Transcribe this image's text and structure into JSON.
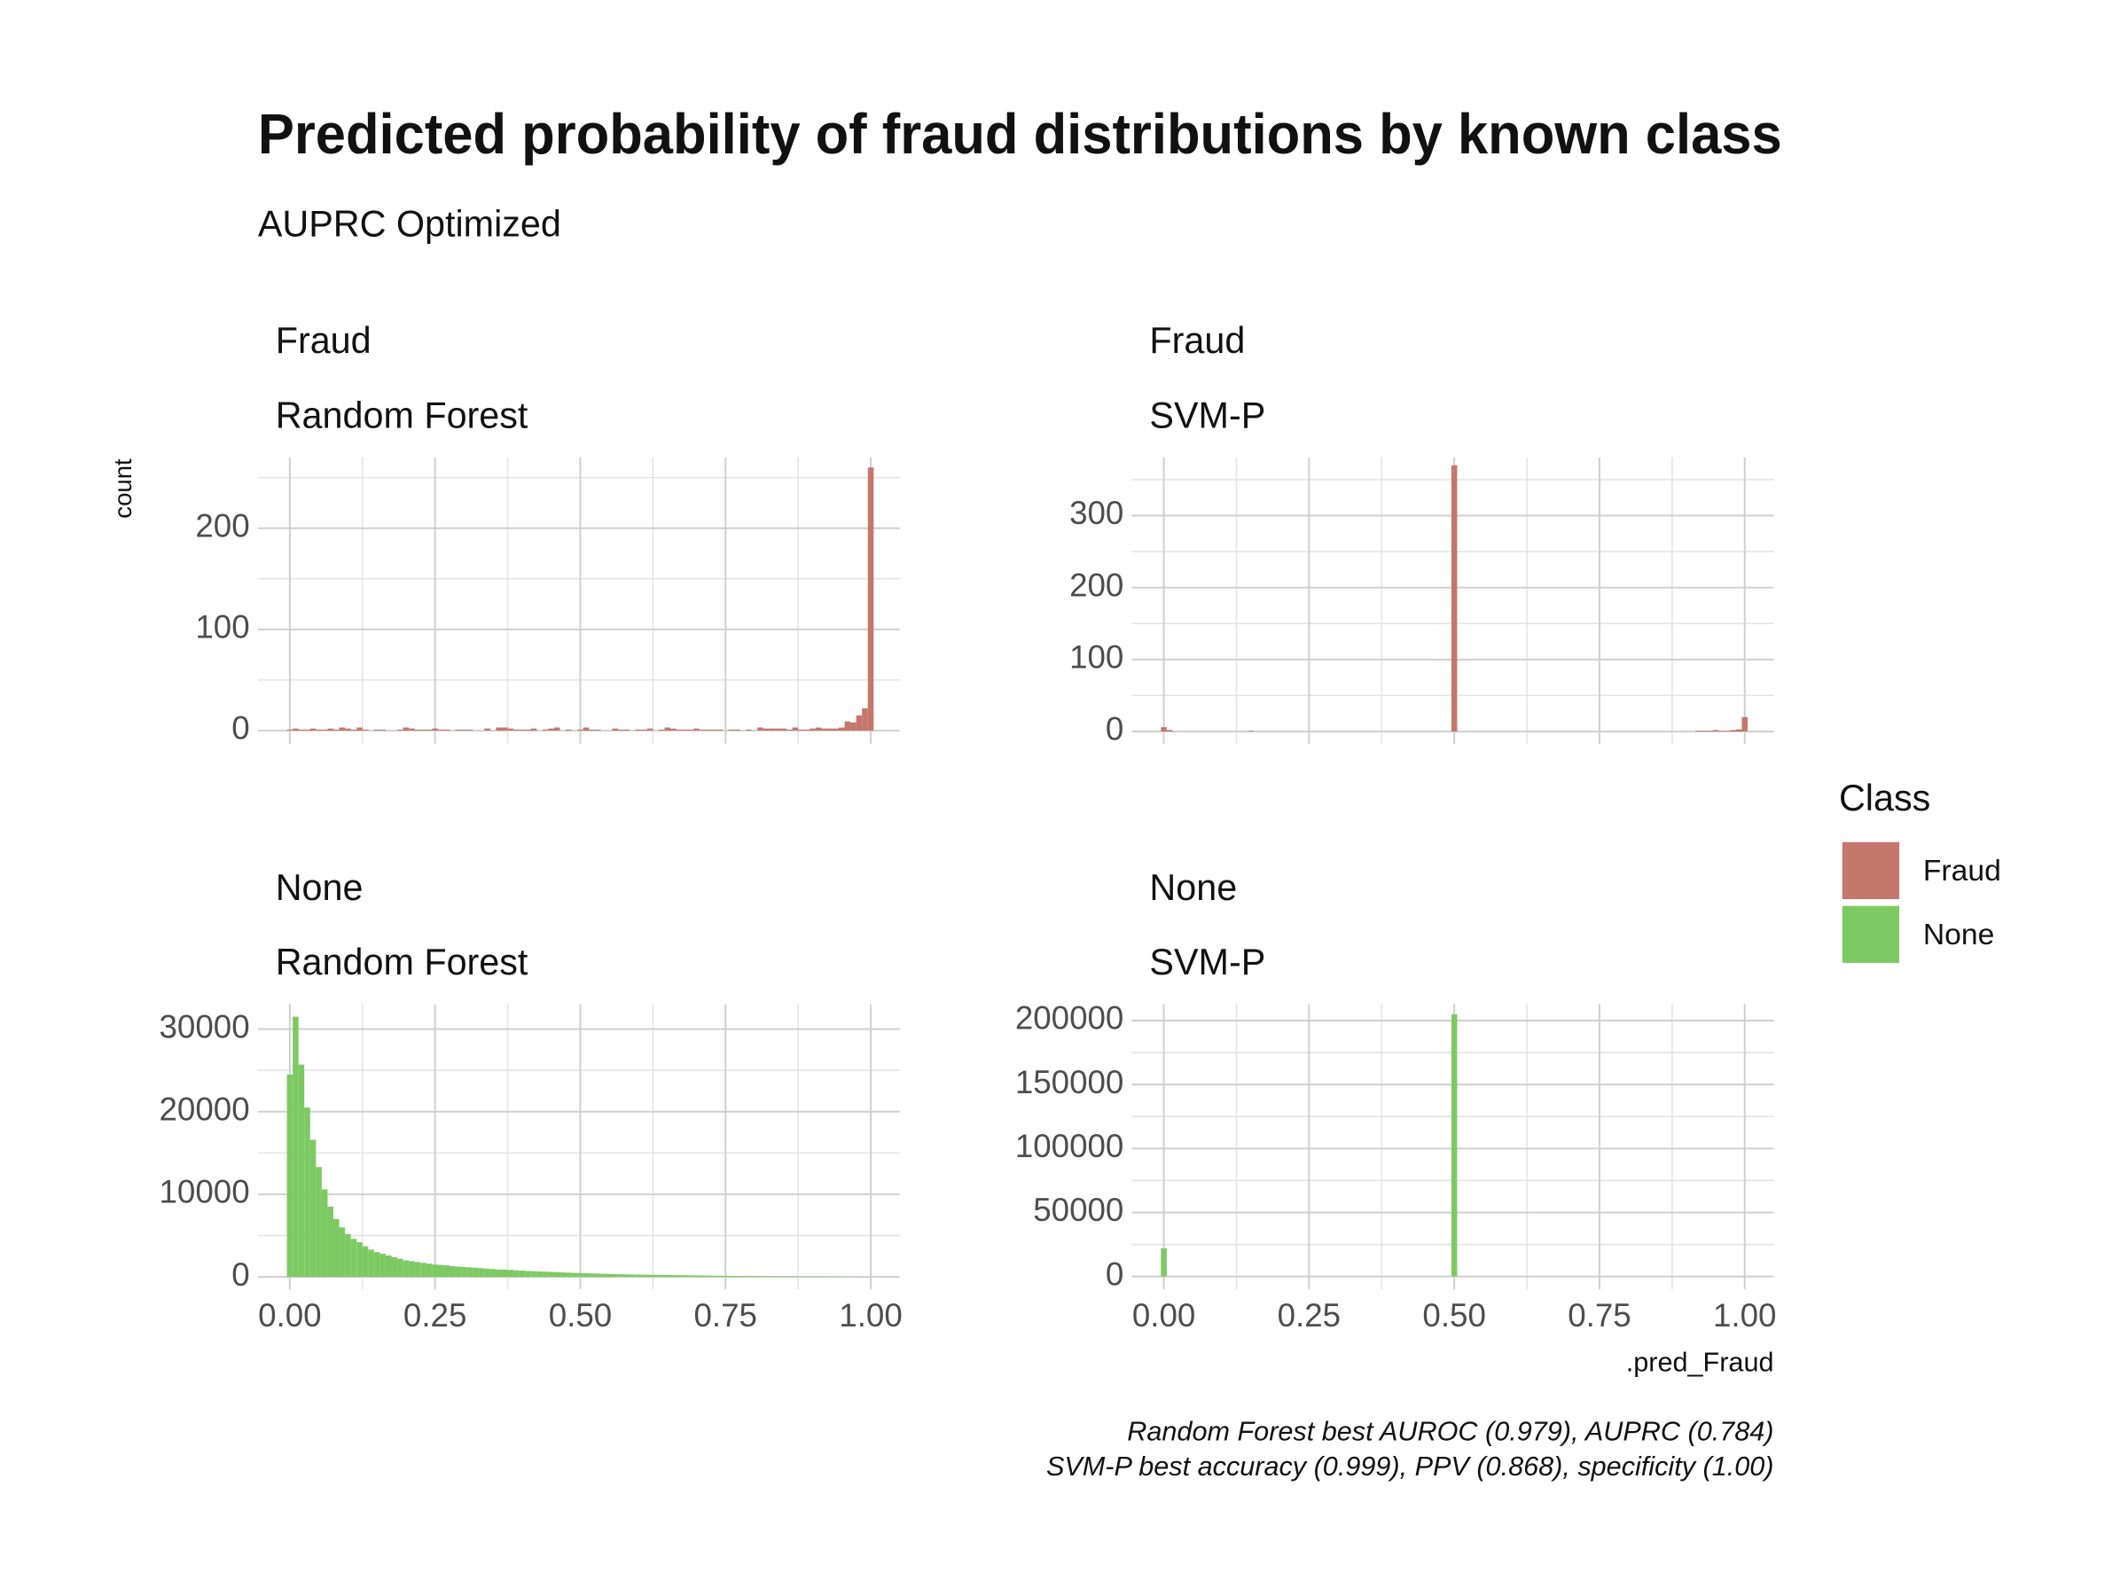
{
  "figure": {
    "title": "Predicted probability of fraud distributions by known class",
    "subtitle": "AUPRC Optimized",
    "y_label": "count",
    "x_label": ".pred_Fraud",
    "legend": {
      "title": "Class",
      "items": [
        {
          "name": "Fraud",
          "color": "#c4776a"
        },
        {
          "name": "None",
          "color": "#7dca63"
        }
      ]
    },
    "caption": [
      "Random Forest best AUROC (0.979), AUPRC (0.784)",
      "SVM-P best accuracy (0.999), PPV (0.868), specificity (1.00)"
    ]
  },
  "chart_data": [
    {
      "type": "histogram",
      "facets": [
        "Fraud",
        "Random Forest"
      ],
      "color": "#c4776a",
      "x_tick_labels": false,
      "bins": [
        -0.005,
        0.005,
        0.015,
        0.025,
        0.035,
        0.045,
        0.055,
        0.065,
        0.075,
        0.085,
        0.095,
        0.105,
        0.115,
        0.125,
        0.135,
        0.145,
        0.155,
        0.165,
        0.175,
        0.185,
        0.195,
        0.205,
        0.215,
        0.225,
        0.235,
        0.245,
        0.255,
        0.265,
        0.275,
        0.285,
        0.295,
        0.305,
        0.315,
        0.325,
        0.335,
        0.345,
        0.355,
        0.365,
        0.375,
        0.385,
        0.395,
        0.405,
        0.415,
        0.425,
        0.435,
        0.445,
        0.455,
        0.465,
        0.475,
        0.485,
        0.495,
        0.505,
        0.515,
        0.525,
        0.535,
        0.545,
        0.555,
        0.565,
        0.575,
        0.585,
        0.595,
        0.605,
        0.615,
        0.625,
        0.635,
        0.645,
        0.655,
        0.665,
        0.675,
        0.685,
        0.695,
        0.705,
        0.715,
        0.725,
        0.735,
        0.745,
        0.755,
        0.765,
        0.775,
        0.785,
        0.795,
        0.805,
        0.815,
        0.825,
        0.835,
        0.845,
        0.855,
        0.865,
        0.875,
        0.885,
        0.895,
        0.905,
        0.915,
        0.925,
        0.935,
        0.945,
        0.955,
        0.965,
        0.975,
        0.985,
        0.995,
        1.005
      ],
      "counts": [
        1,
        2,
        1,
        1,
        2,
        1,
        1,
        2,
        1,
        3,
        2,
        1,
        3,
        1,
        0,
        1,
        1,
        0,
        0,
        1,
        3,
        2,
        1,
        1,
        1,
        2,
        1,
        1,
        0,
        1,
        1,
        1,
        0,
        0,
        2,
        0,
        3,
        3,
        2,
        1,
        1,
        1,
        2,
        0,
        1,
        2,
        3,
        0,
        1,
        0,
        1,
        3,
        1,
        1,
        0,
        0,
        2,
        1,
        1,
        0,
        1,
        1,
        2,
        0,
        1,
        3,
        2,
        1,
        1,
        1,
        2,
        1,
        1,
        1,
        1,
        0,
        1,
        1,
        0,
        1,
        0,
        3,
        2,
        2,
        2,
        2,
        1,
        3,
        1,
        1,
        2,
        3,
        2,
        2,
        2,
        3,
        9,
        8,
        15,
        22,
        260
      ],
      "xlim": [
        -0.055,
        1.05
      ],
      "ylim": [
        -13,
        270
      ],
      "yticks": [
        0,
        100,
        200
      ],
      "xticks": [
        {
          "value": 0,
          "label": "0.00"
        },
        {
          "value": 0.25,
          "label": "0.25"
        },
        {
          "value": 0.5,
          "label": "0.50"
        },
        {
          "value": 0.75,
          "label": "0.75"
        },
        {
          "value": 1,
          "label": "1.00"
        }
      ]
    },
    {
      "type": "histogram",
      "facets": [
        "Fraud",
        "SVM-P"
      ],
      "color": "#c4776a",
      "x_tick_labels": false,
      "bins": [
        -0.005,
        0.005,
        0.015,
        0.025,
        0.035,
        0.045,
        0.055,
        0.065,
        0.075,
        0.085,
        0.095,
        0.105,
        0.115,
        0.125,
        0.135,
        0.145,
        0.155,
        0.165,
        0.175,
        0.185,
        0.195,
        0.205,
        0.215,
        0.225,
        0.235,
        0.245,
        0.255,
        0.265,
        0.275,
        0.285,
        0.295,
        0.305,
        0.315,
        0.325,
        0.335,
        0.345,
        0.355,
        0.365,
        0.375,
        0.385,
        0.395,
        0.405,
        0.415,
        0.425,
        0.435,
        0.445,
        0.455,
        0.465,
        0.475,
        0.485,
        0.495,
        0.505,
        0.515,
        0.525,
        0.535,
        0.545,
        0.555,
        0.565,
        0.575,
        0.585,
        0.595,
        0.605,
        0.615,
        0.625,
        0.635,
        0.645,
        0.655,
        0.665,
        0.675,
        0.685,
        0.695,
        0.705,
        0.715,
        0.725,
        0.735,
        0.745,
        0.755,
        0.765,
        0.775,
        0.785,
        0.795,
        0.805,
        0.815,
        0.825,
        0.835,
        0.845,
        0.855,
        0.865,
        0.875,
        0.885,
        0.895,
        0.905,
        0.915,
        0.925,
        0.935,
        0.945,
        0.955,
        0.965,
        0.975,
        0.985,
        0.995,
        1.005
      ],
      "counts": [
        6,
        2,
        0,
        0,
        0,
        0,
        0,
        0,
        0,
        0,
        0,
        0,
        0,
        0,
        0,
        1,
        0,
        0,
        0,
        0,
        0,
        0,
        0,
        0,
        0,
        0,
        0,
        0,
        0,
        0,
        0,
        0,
        0,
        0,
        0,
        0,
        0,
        0,
        0,
        0,
        0,
        0,
        0,
        0,
        0,
        0,
        0,
        0,
        0,
        0,
        370,
        0,
        0,
        0,
        0,
        0,
        0,
        0,
        0,
        0,
        0,
        0,
        0,
        0,
        0,
        0,
        0,
        0,
        0,
        0,
        0,
        0,
        0,
        0,
        0,
        0,
        0,
        0,
        0,
        0,
        0,
        0,
        0,
        0,
        0,
        0,
        0,
        0,
        0,
        0,
        0,
        0,
        1,
        1,
        1,
        2,
        1,
        1,
        2,
        3,
        20
      ],
      "xlim": [
        -0.055,
        1.05
      ],
      "ylim": [
        -17,
        381
      ],
      "yticks": [
        0,
        100,
        200,
        300
      ],
      "xticks": [
        {
          "value": 0,
          "label": "0.00"
        },
        {
          "value": 0.25,
          "label": "0.25"
        },
        {
          "value": 0.5,
          "label": "0.50"
        },
        {
          "value": 0.75,
          "label": "0.75"
        },
        {
          "value": 1,
          "label": "1.00"
        }
      ]
    },
    {
      "type": "histogram",
      "facets": [
        "None",
        "Random Forest"
      ],
      "color": "#7dca63",
      "x_tick_labels": true,
      "bins": [
        -0.005,
        0.005,
        0.015,
        0.025,
        0.035,
        0.045,
        0.055,
        0.065,
        0.075,
        0.085,
        0.095,
        0.105,
        0.115,
        0.125,
        0.135,
        0.145,
        0.155,
        0.165,
        0.175,
        0.185,
        0.195,
        0.205,
        0.215,
        0.225,
        0.235,
        0.245,
        0.255,
        0.265,
        0.275,
        0.285,
        0.295,
        0.305,
        0.315,
        0.325,
        0.335,
        0.345,
        0.355,
        0.365,
        0.375,
        0.385,
        0.395,
        0.405,
        0.415,
        0.425,
        0.435,
        0.445,
        0.455,
        0.465,
        0.475,
        0.485,
        0.495,
        0.505,
        0.515,
        0.525,
        0.535,
        0.545,
        0.555,
        0.565,
        0.575,
        0.585,
        0.595,
        0.605,
        0.615,
        0.625,
        0.635,
        0.645,
        0.655,
        0.665,
        0.675,
        0.685,
        0.695,
        0.705,
        0.715,
        0.725,
        0.735,
        0.745,
        0.755,
        0.765,
        0.775,
        0.785,
        0.795,
        0.805,
        0.815,
        0.825,
        0.835,
        0.845,
        0.855,
        0.865,
        0.875,
        0.885,
        0.895,
        0.905,
        0.915,
        0.925,
        0.935,
        0.945,
        0.955,
        0.965,
        0.975,
        0.985,
        0.995,
        1.005
      ],
      "counts": [
        24500,
        31500,
        25700,
        20500,
        16600,
        13300,
        10600,
        8500,
        7000,
        6000,
        5200,
        4600,
        4200,
        3700,
        3300,
        3000,
        2800,
        2600,
        2400,
        2200,
        2000,
        1900,
        1800,
        1700,
        1600,
        1500,
        1450,
        1400,
        1300,
        1250,
        1200,
        1150,
        1100,
        1050,
        1000,
        950,
        900,
        880,
        850,
        800,
        760,
        720,
        690,
        660,
        630,
        600,
        570,
        540,
        510,
        480,
        460,
        440,
        420,
        400,
        380,
        360,
        340,
        320,
        300,
        290,
        280,
        270,
        260,
        250,
        240,
        230,
        220,
        210,
        200,
        190,
        180,
        170,
        160,
        150,
        140,
        130,
        120,
        115,
        110,
        105,
        100,
        95,
        90,
        85,
        80,
        75,
        70,
        65,
        60,
        55,
        50,
        45,
        40,
        35,
        30,
        25,
        20,
        15,
        12,
        10,
        8
      ],
      "xlim": [
        -0.055,
        1.05
      ],
      "ylim": [
        -1500,
        33000
      ],
      "yticks": [
        0,
        10000,
        20000,
        30000
      ],
      "xticks": [
        {
          "value": 0,
          "label": "0.00"
        },
        {
          "value": 0.25,
          "label": "0.25"
        },
        {
          "value": 0.5,
          "label": "0.50"
        },
        {
          "value": 0.75,
          "label": "0.75"
        },
        {
          "value": 1,
          "label": "1.00"
        }
      ]
    },
    {
      "type": "histogram",
      "facets": [
        "None",
        "SVM-P"
      ],
      "color": "#7dca63",
      "x_tick_labels": true,
      "bins": [
        -0.005,
        0.005,
        0.015,
        0.025,
        0.035,
        0.045,
        0.055,
        0.065,
        0.075,
        0.085,
        0.095,
        0.105,
        0.115,
        0.125,
        0.135,
        0.145,
        0.155,
        0.165,
        0.175,
        0.185,
        0.195,
        0.205,
        0.215,
        0.225,
        0.235,
        0.245,
        0.255,
        0.265,
        0.275,
        0.285,
        0.295,
        0.305,
        0.315,
        0.325,
        0.335,
        0.345,
        0.355,
        0.365,
        0.375,
        0.385,
        0.395,
        0.405,
        0.415,
        0.425,
        0.435,
        0.445,
        0.455,
        0.465,
        0.475,
        0.485,
        0.495,
        0.505,
        0.515,
        0.525,
        0.535,
        0.545,
        0.555,
        0.565,
        0.575,
        0.585,
        0.595,
        0.605,
        0.615,
        0.625,
        0.635,
        0.645,
        0.655,
        0.665,
        0.675,
        0.685,
        0.695,
        0.705,
        0.715,
        0.725,
        0.735,
        0.745,
        0.755,
        0.765,
        0.775,
        0.785,
        0.795,
        0.805,
        0.815,
        0.825,
        0.835,
        0.845,
        0.855,
        0.865,
        0.875,
        0.885,
        0.895,
        0.905,
        0.915,
        0.925,
        0.935,
        0.945,
        0.955,
        0.965,
        0.975,
        0.985,
        0.995,
        1.005
      ],
      "counts": [
        22000,
        0,
        0,
        0,
        0,
        0,
        0,
        0,
        0,
        0,
        0,
        0,
        0,
        0,
        0,
        0,
        0,
        0,
        0,
        0,
        0,
        0,
        0,
        0,
        0,
        0,
        0,
        0,
        0,
        0,
        0,
        0,
        0,
        0,
        0,
        0,
        0,
        0,
        0,
        0,
        0,
        0,
        0,
        0,
        0,
        0,
        0,
        0,
        0,
        0,
        205000,
        0,
        0,
        0,
        0,
        0,
        0,
        0,
        0,
        0,
        0,
        0,
        0,
        0,
        0,
        0,
        0,
        0,
        0,
        0,
        0,
        0,
        0,
        0,
        0,
        0,
        0,
        0,
        0,
        0,
        0,
        0,
        0,
        0,
        0,
        0,
        0,
        0,
        0,
        0,
        0,
        0,
        0,
        0,
        0,
        0,
        0,
        0,
        0,
        0,
        0
      ],
      "xlim": [
        -0.055,
        1.05
      ],
      "ylim": [
        -10000,
        212700
      ],
      "yticks": [
        0,
        50000,
        100000,
        150000,
        200000
      ],
      "xticks": [
        {
          "value": 0,
          "label": "0.00"
        },
        {
          "value": 0.25,
          "label": "0.25"
        },
        {
          "value": 0.5,
          "label": "0.50"
        },
        {
          "value": 0.75,
          "label": "0.75"
        },
        {
          "value": 1,
          "label": "1.00"
        }
      ]
    }
  ]
}
